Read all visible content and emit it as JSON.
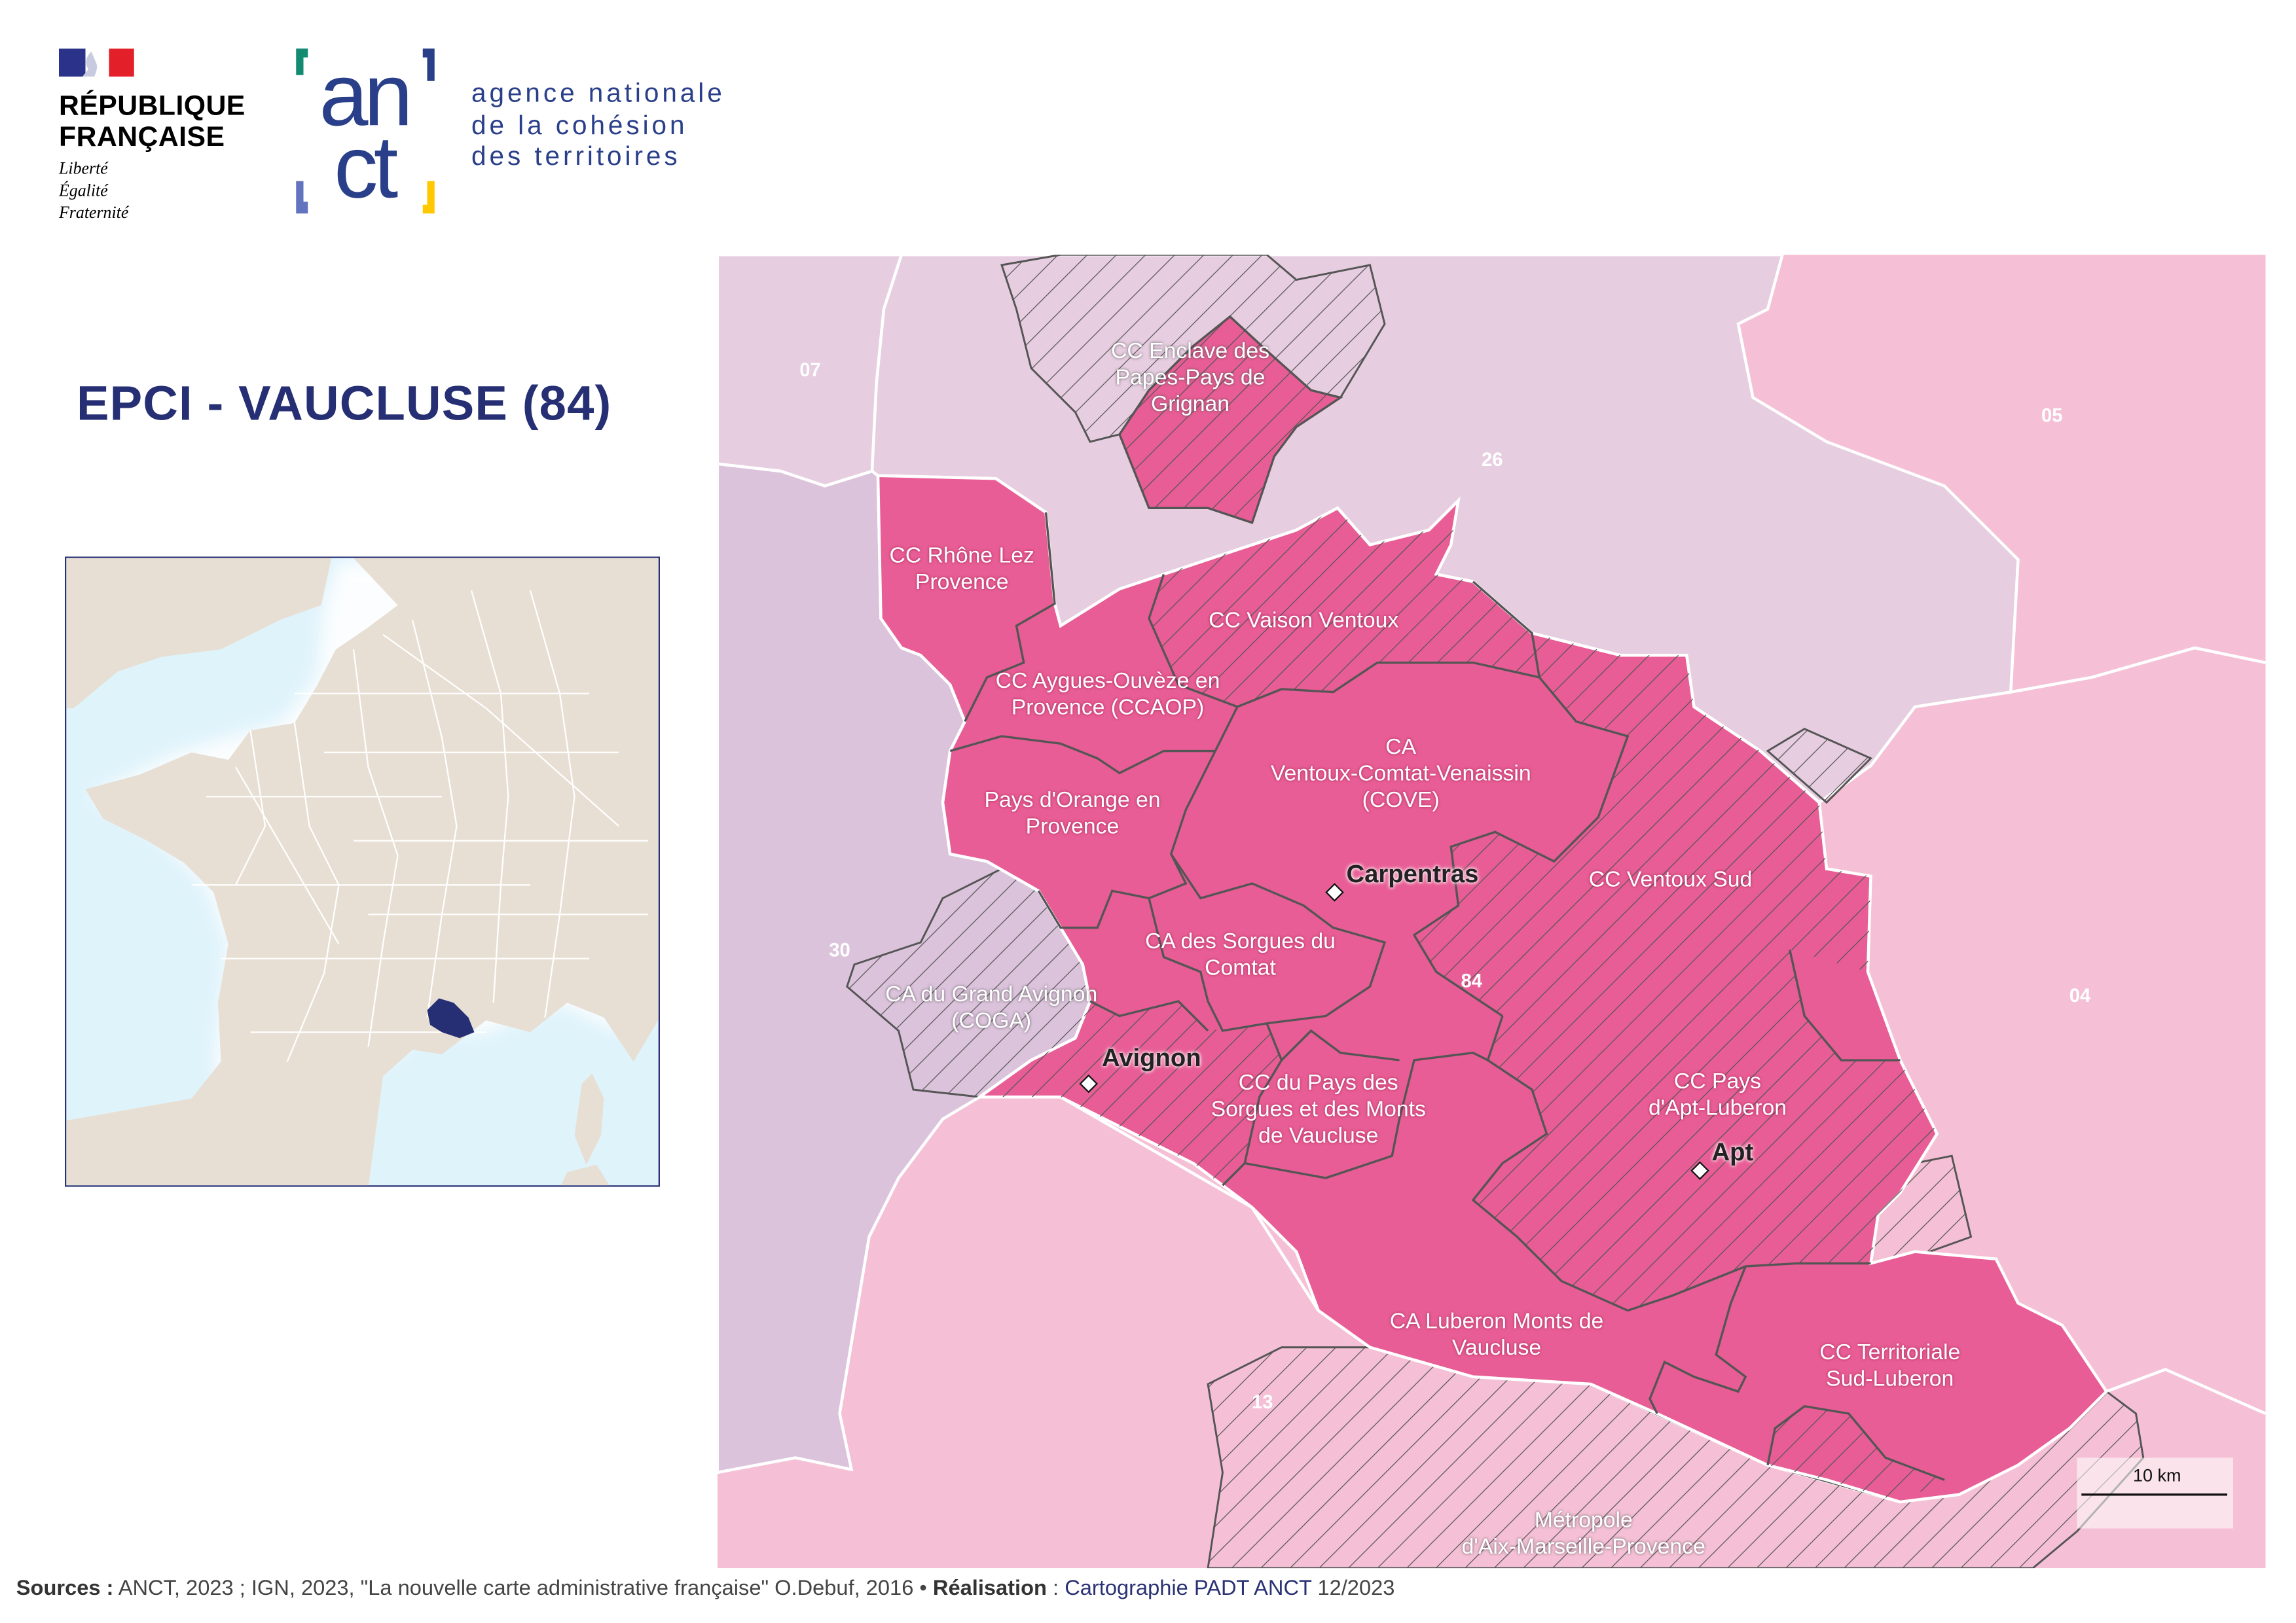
{
  "header": {
    "republique_line1": "RÉPUBLIQUE",
    "republique_line2": "FRANÇAISE",
    "motto": [
      "Liberté",
      "Égalité",
      "Fraternité"
    ],
    "anct_logo_text": "anct",
    "anct_name": [
      "agence nationale",
      "de la cohésion",
      "des territoires"
    ]
  },
  "title": "EPCI - VAUCLUSE (84)",
  "colors": {
    "epci_fill": "#e85d95",
    "neighbour_pink": "#f5c0d5",
    "neighbour_lilac": "#e6cde0",
    "neighbour_gard": "#dcc3dc",
    "border_dark": "#555555",
    "inset_highlight": "#262f73",
    "title_navy": "#262f73"
  },
  "map": {
    "departments": [
      "07",
      "26",
      "05",
      "30",
      "84",
      "04",
      "13"
    ],
    "epci": [
      {
        "label": [
          "CC Enclave des",
          "Papes-Pays de",
          "Grignan"
        ],
        "hatched": true
      },
      {
        "label": [
          "CC Rhône Lez",
          "Provence"
        ],
        "hatched": false
      },
      {
        "label": [
          "CC Vaison Ventoux"
        ],
        "hatched": true
      },
      {
        "label": [
          "CC Aygues-Ouvèze en",
          "Provence (CCAOP)"
        ],
        "hatched": false
      },
      {
        "label": [
          "CA",
          "Ventoux-Comtat-Venaissin",
          "(COVE)"
        ],
        "hatched": false
      },
      {
        "label": [
          "Pays d'Orange en",
          "Provence"
        ],
        "hatched": false
      },
      {
        "label": [
          "CC Ventoux Sud"
        ],
        "hatched": true
      },
      {
        "label": [
          "CA des Sorgues du",
          "Comtat"
        ],
        "hatched": false
      },
      {
        "label": [
          "CA du Grand Avignon",
          "(COGA)"
        ],
        "hatched": true
      },
      {
        "label": [
          "CC du Pays des",
          "Sorgues et des Monts",
          "de Vaucluse"
        ],
        "hatched": false
      },
      {
        "label": [
          "CC Pays",
          "d'Apt-Luberon"
        ],
        "hatched": true
      },
      {
        "label": [
          "CA Luberon Monts de",
          "Vaucluse"
        ],
        "hatched": false
      },
      {
        "label": [
          "CC Territoriale",
          "Sud-Luberon"
        ],
        "hatched": false
      },
      {
        "label": [
          "Métropole",
          "d'Aix-Marseille-Provence"
        ],
        "hatched": true
      }
    ],
    "cities": [
      "Carpentras",
      "Avignon",
      "Apt"
    ],
    "scale_label": "10 km"
  },
  "footer": {
    "sources_label": "Sources :",
    "sources_text": " ANCT, 2023 ; IGN, 2023, \"La nouvelle carte administrative française\" O.Debuf, 2016 • ",
    "realisation_label": "Réalisation",
    "realisation_sep": " : ",
    "realisation_org": "Cartographie PADT ANCT",
    "realisation_date": " 12/2023"
  }
}
